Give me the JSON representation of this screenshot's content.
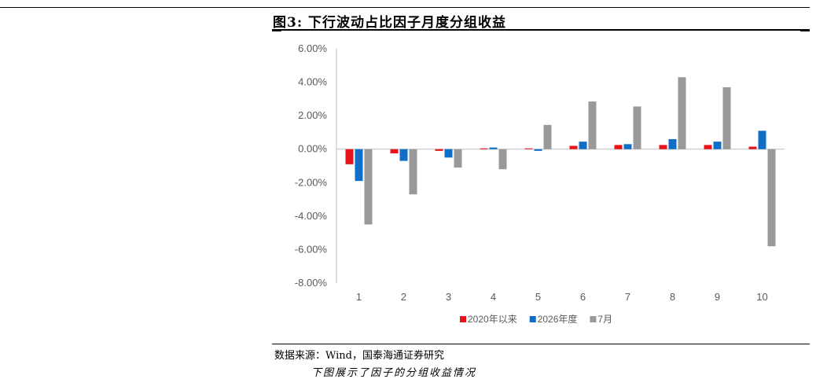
{
  "figure": {
    "title": "图3:  下行波动占比因子月度分组收益"
  },
  "source_note": "数据来源：Wind，国泰海通证券研究",
  "body_snippet": "下图展示了因子的分组收益情况",
  "colors": {
    "series_2020": "#e8141c",
    "series_2026": "#0f6fc6",
    "series_july": "#999999",
    "axis": "#bfbfbf"
  },
  "chart_data": {
    "type": "bar",
    "title": "",
    "xlabel": "",
    "ylabel": "",
    "categories": [
      "1",
      "2",
      "3",
      "4",
      "5",
      "6",
      "7",
      "8",
      "9",
      "10"
    ],
    "ylim": [
      -0.08,
      0.06
    ],
    "yticks": [
      0.06,
      0.04,
      0.02,
      0.0,
      -0.02,
      -0.04,
      -0.06,
      -0.08
    ],
    "ytick_labels": [
      "6.00%",
      "4.00%",
      "2.00%",
      "0.00%",
      "-2.00%",
      "-4.00%",
      "-6.00%",
      "-8.00%"
    ],
    "grid": false,
    "legend": "bottom",
    "series": [
      {
        "name": "2020年以来",
        "color_key": "series_2020",
        "values": [
          -0.009,
          -0.0025,
          -0.001,
          0.0005,
          0.0005,
          0.002,
          0.0025,
          0.0025,
          0.0025,
          0.0015
        ]
      },
      {
        "name": "2026年度",
        "color_key": "series_2026",
        "values": [
          -0.019,
          -0.007,
          -0.005,
          0.001,
          -0.001,
          0.0045,
          0.003,
          0.006,
          0.0045,
          0.011
        ]
      },
      {
        "name": "7月",
        "color_key": "series_july",
        "values": [
          -0.045,
          -0.027,
          -0.011,
          -0.012,
          0.0145,
          0.0285,
          0.0255,
          0.043,
          0.037,
          -0.058
        ]
      }
    ]
  }
}
